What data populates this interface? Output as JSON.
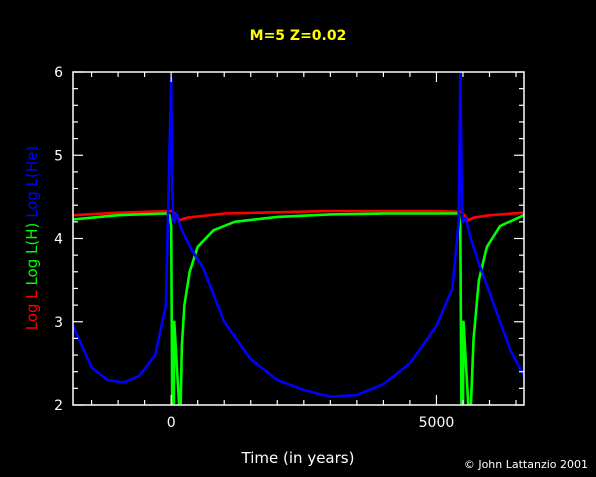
{
  "chart_data": {
    "type": "line",
    "title": "M=5 Z=0.02",
    "xlabel": "Time (in years)",
    "ylabel_parts": [
      {
        "text": "Log L",
        "color": "#ff0000"
      },
      {
        "text": "Log L(H)",
        "color": "#00ff00"
      },
      {
        "text": "Log L(He)",
        "color": "#0000ff"
      }
    ],
    "xlim": [
      -1850,
      6650
    ],
    "ylim": [
      2,
      6
    ],
    "xticks": [
      0,
      5000
    ],
    "yticks": [
      2,
      3,
      4,
      5,
      6
    ],
    "grid": false,
    "colors": {
      "background": "#000000",
      "axes": "#ffffff",
      "title": "#ffff00"
    },
    "series": [
      {
        "name": "Log L",
        "color": "#ff0000",
        "x": [
          -1850,
          -1000,
          0,
          50,
          100,
          150,
          300,
          1000,
          3000,
          5000,
          5450,
          5500,
          5550,
          5600,
          5700,
          6000,
          6650
        ],
        "y": [
          4.28,
          4.31,
          4.33,
          4.31,
          4.27,
          4.22,
          4.25,
          4.3,
          4.33,
          4.33,
          4.32,
          4.3,
          4.26,
          4.22,
          4.25,
          4.28,
          4.31
        ]
      },
      {
        "name": "Log L(H)",
        "color": "#00ff00",
        "x": [
          -1850,
          -1000,
          -100,
          -30,
          0,
          20,
          50,
          60,
          150,
          180,
          200,
          250,
          350,
          500,
          800,
          1200,
          2000,
          3000,
          4000,
          5000,
          5420,
          5450,
          5470,
          5500,
          5510,
          5600,
          5650,
          5700,
          5800,
          5950,
          6200,
          6650
        ],
        "y": [
          4.23,
          4.28,
          4.3,
          4.28,
          4.15,
          2.0,
          2.0,
          3.0,
          2.0,
          2.0,
          2.7,
          3.2,
          3.6,
          3.9,
          4.1,
          4.2,
          4.26,
          4.29,
          4.3,
          4.3,
          4.3,
          4.15,
          2.0,
          2.0,
          3.0,
          2.0,
          2.0,
          2.8,
          3.5,
          3.9,
          4.15,
          4.28
        ]
      },
      {
        "name": "Log L(He)",
        "color": "#0000ff",
        "x": [
          -1850,
          -1500,
          -1200,
          -900,
          -600,
          -300,
          -100,
          0,
          20,
          40,
          60,
          100,
          200,
          400,
          600,
          1000,
          1500,
          2000,
          2500,
          3000,
          3500,
          4000,
          4500,
          5000,
          5300,
          5420,
          5450,
          5480,
          5500,
          5550,
          5650,
          5800,
          6000,
          6200,
          6400,
          6650
        ],
        "y": [
          2.95,
          2.45,
          2.3,
          2.27,
          2.35,
          2.6,
          3.2,
          5.93,
          4.6,
          4.25,
          4.2,
          4.3,
          4.1,
          3.85,
          3.65,
          3.0,
          2.55,
          2.3,
          2.18,
          2.1,
          2.12,
          2.25,
          2.5,
          2.95,
          3.4,
          4.2,
          6.0,
          4.4,
          4.2,
          4.25,
          4.0,
          3.7,
          3.35,
          3.0,
          2.65,
          2.35
        ]
      }
    ]
  },
  "credit": "© John Lattanzio 2001"
}
